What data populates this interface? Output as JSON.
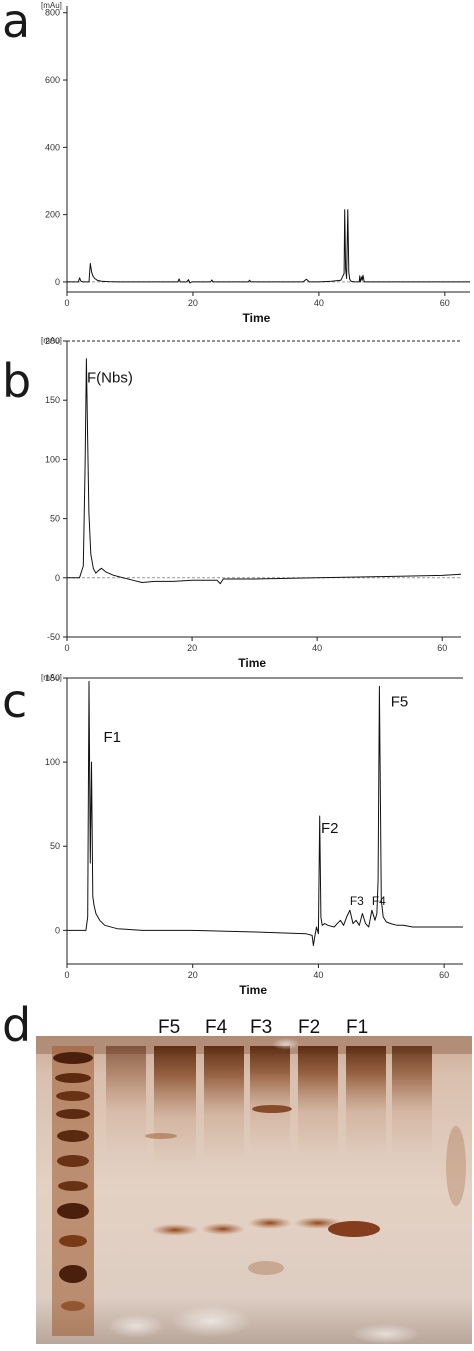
{
  "panels": {
    "a": "a",
    "b": "b",
    "c": "c",
    "d": "d"
  },
  "chart_data": [
    {
      "panel": "a",
      "type": "line",
      "unit_label": "[mAu]",
      "xlabel": "Time",
      "ylabel": "",
      "xlim": [
        0,
        64
      ],
      "ylim": [
        -30,
        820
      ],
      "x_ticks": [
        0,
        20,
        40,
        60
      ],
      "y_ticks": [
        0,
        200,
        400,
        600,
        800
      ],
      "baseline_dashed": true,
      "peak_labels": [],
      "series": [
        {
          "x": [
            0,
            1.8,
            2.0,
            2.2,
            2.5,
            3.5,
            3.7,
            3.9,
            4.1,
            4.4,
            4.8,
            5.5,
            6.5,
            8,
            10,
            15,
            17.6,
            17.8,
            18.0,
            19,
            19.3,
            19.5,
            19.8,
            21,
            22.8,
            23.0,
            23.2,
            25,
            28.8,
            29.0,
            29.2,
            32,
            35,
            37.5,
            38.0,
            38.5,
            40,
            42,
            43.5,
            44.0,
            44.1,
            44.25,
            44.4,
            44.6,
            44.75,
            44.9,
            45.1,
            45.6,
            46,
            46.4,
            46.5,
            46.6,
            46.8,
            46.9,
            47.0,
            47.2,
            48,
            55,
            60,
            64
          ],
          "y": [
            0,
            0,
            12,
            2,
            0,
            0,
            55,
            30,
            18,
            10,
            5,
            2,
            1,
            0,
            0,
            0,
            0,
            9,
            0,
            0,
            7,
            -3,
            0,
            0,
            0,
            6,
            0,
            0,
            0,
            5,
            0,
            0,
            0,
            0,
            8,
            0,
            0,
            2,
            5,
            25,
            215,
            40,
            10,
            215,
            30,
            8,
            2,
            0,
            0,
            0,
            18,
            0,
            15,
            5,
            20,
            0,
            0,
            0,
            0,
            0
          ]
        }
      ]
    },
    {
      "panel": "b",
      "type": "line",
      "unit_label": "[mAu]",
      "xlabel": "Time",
      "ylabel": "",
      "xlim": [
        0,
        63
      ],
      "ylim": [
        -50,
        200
      ],
      "x_ticks": [
        0,
        20,
        40,
        60
      ],
      "y_ticks": [
        -50,
        0,
        50,
        100,
        150,
        200
      ],
      "baseline_dashed": true,
      "peak_labels": [
        {
          "text": "F(Nbs)",
          "x": 3.2,
          "y": 165
        }
      ],
      "series": [
        {
          "x": [
            0,
            2.0,
            2.6,
            2.9,
            3.1,
            3.3,
            3.5,
            3.8,
            4.2,
            4.6,
            5.0,
            5.5,
            6.2,
            7.5,
            9,
            10.5,
            12,
            14,
            17,
            20,
            24,
            24.5,
            25,
            30,
            40,
            50,
            60,
            63
          ],
          "y": [
            0,
            0,
            10,
            95,
            185,
            120,
            55,
            20,
            8,
            4,
            6,
            8,
            5,
            2,
            0,
            -2,
            -4,
            -3,
            -3,
            -2,
            -2,
            -5,
            -1,
            -1,
            0,
            1,
            2,
            3
          ]
        }
      ]
    },
    {
      "panel": "c",
      "type": "line",
      "unit_label": "[mAu]",
      "xlabel": "Time",
      "ylabel": "",
      "xlim": [
        0,
        63
      ],
      "ylim": [
        -20,
        150
      ],
      "x_ticks": [
        0,
        20,
        40,
        60
      ],
      "y_ticks": [
        0,
        50,
        100,
        150
      ],
      "baseline_dashed": false,
      "peak_labels": [
        {
          "text": "F1",
          "x": 5.8,
          "y": 112
        },
        {
          "text": "F2",
          "x": 40.4,
          "y": 58
        },
        {
          "text": "F3",
          "x": 45.0,
          "y": 15
        },
        {
          "text": "F4",
          "x": 48.5,
          "y": 15
        },
        {
          "text": "F5",
          "x": 51.5,
          "y": 133
        }
      ],
      "series": [
        {
          "x": [
            0,
            3.0,
            3.3,
            3.5,
            3.7,
            3.9,
            4.1,
            4.3,
            4.6,
            5.2,
            6,
            8,
            12,
            20,
            30,
            38,
            39.0,
            39.2,
            39.4,
            39.7,
            40.0,
            40.2,
            40.4,
            40.6,
            41.0,
            41.5,
            42.5,
            43.5,
            44.0,
            44.5,
            45.0,
            45.5,
            46.0,
            46.5,
            47.0,
            47.5,
            48.0,
            48.5,
            49.0,
            49.3,
            49.5,
            49.7,
            49.8,
            50.0,
            50.3,
            50.8,
            51.5,
            52.5,
            53.5,
            55,
            60,
            63
          ],
          "y": [
            0,
            0,
            8,
            148,
            40,
            100,
            20,
            15,
            10,
            6,
            3,
            1,
            0,
            0,
            -1,
            -2,
            -3,
            -9,
            -4,
            2,
            -2,
            68,
            8,
            3,
            4,
            3,
            2,
            6,
            3,
            8,
            12,
            4,
            6,
            3,
            10,
            4,
            2,
            12,
            6,
            10,
            30,
            145,
            105,
            18,
            8,
            5,
            4,
            3,
            3,
            2,
            2,
            2
          ]
        }
      ]
    }
  ],
  "gel": {
    "lane_labels": [
      "F5",
      "F4",
      "F3",
      "F2",
      "F1"
    ]
  }
}
